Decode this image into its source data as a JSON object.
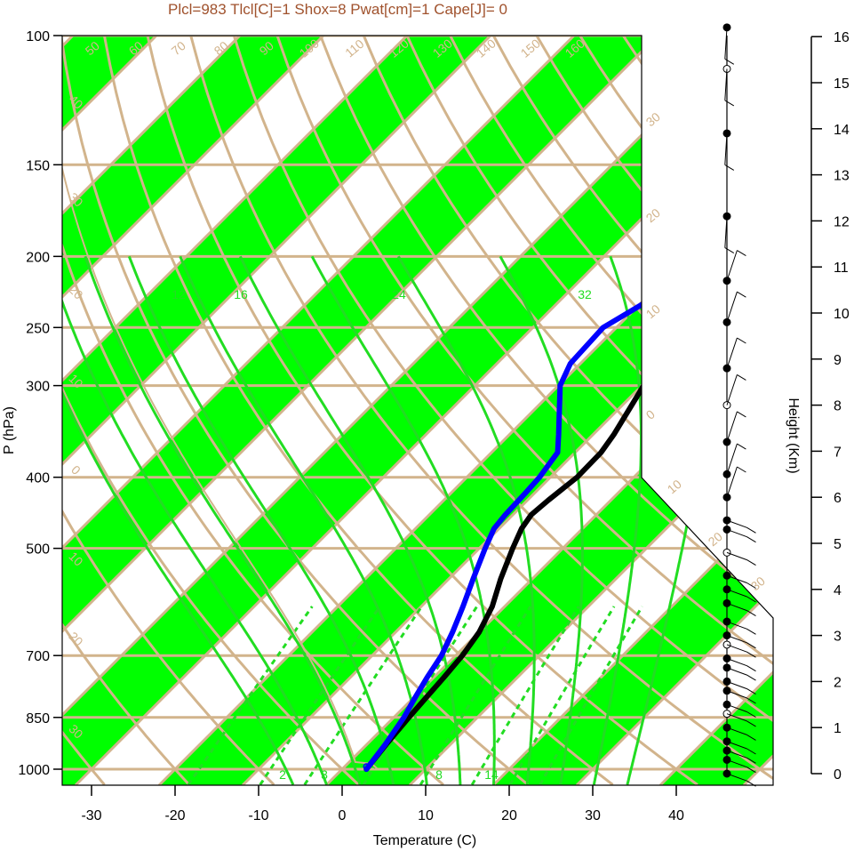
{
  "title": "Plcl=983 Tlcl[C]=1 Shox=8 Pwat[cm]=1 Cape[J]= 0",
  "colors": {
    "band": "#00ff00",
    "isobar": "#d2b48c",
    "isotherm": "#d2b48c",
    "dry_adiabat": "#d2b48c",
    "moist_adiabat": "#22dd22",
    "mixing_ratio": "#22dd22",
    "temperature": "#000000",
    "dewpoint": "#0000ff",
    "title": "#a0522d"
  },
  "chart_data": {
    "type": "line",
    "title": "Plcl=983 Tlcl[C]=1 Shox=8 Pwat[cm]=1 Cape[J]= 0",
    "xlabel": "Temperature (C)",
    "ylabel": "P (hPa)",
    "y2label": "Height (Km)",
    "x_ticks": [
      "-30",
      "-20",
      "-10",
      "0",
      "10",
      "20",
      "30",
      "40"
    ],
    "p_ticks": [
      "100",
      "150",
      "200",
      "250",
      "300",
      "400",
      "500",
      "700",
      "850",
      "1000"
    ],
    "height_ticks": [
      "0",
      "1",
      "2",
      "3",
      "4",
      "5",
      "6",
      "7",
      "8",
      "9",
      "10",
      "11",
      "12",
      "13",
      "14",
      "15",
      "16"
    ],
    "isotherm_labels": [
      "50",
      "60",
      "70",
      "80",
      "90",
      "100",
      "110",
      "120",
      "130",
      "140",
      "150",
      "160",
      "30",
      "20",
      "10",
      "0",
      "10",
      "20",
      "30"
    ],
    "left_labels": [
      "40",
      "30",
      "20",
      "10",
      "0",
      "10",
      "20",
      "30"
    ],
    "mixing_labels_top": [
      "12",
      "16",
      "24",
      "32"
    ],
    "mixing_labels_bottom": [
      "2",
      "3",
      "8",
      "14"
    ],
    "series": [
      {
        "p": [
          1000,
          925,
          850,
          800,
          750,
          700,
          650,
          600,
          550,
          500,
          470,
          450,
          430,
          400,
          370,
          350,
          300,
          270,
          250,
          235,
          220,
          210,
          200,
          180,
          160,
          140,
          120,
          110
        ],
        "values": [
          2.9,
          2.3,
          1.8,
          1.5,
          1.2,
          0.8,
          0.0,
          -1.5,
          -3.8,
          -6.0,
          -7.3,
          -7.8,
          -7.5,
          -6.8,
          -6.9,
          -7.5,
          -9.8,
          -10.2,
          -9.5,
          -7.3,
          -1.7,
          1.5,
          2.8,
          5.0,
          7.4,
          10.3,
          12.4,
          13.2
        ]
      },
      {
        "p": [
          1000,
          925,
          850,
          800,
          750,
          700,
          650,
          600,
          550,
          500,
          470,
          450,
          420,
          400,
          370,
          350,
          300,
          280,
          250,
          230,
          220,
          200,
          150,
          110
        ],
        "values": [
          2.9,
          2.2,
          1.2,
          0.2,
          -0.8,
          -1.7,
          -3.2,
          -5.0,
          -7.1,
          -9.3,
          -10.6,
          -10.9,
          -11.1,
          -11.3,
          -12.1,
          -14.1,
          -19.8,
          -21.2,
          -21.6,
          -19.4,
          -19.8,
          -25.0,
          -27.0,
          -28.2
        ]
      }
    ],
    "wind_profile": {
      "height_km": [
        0,
        0.3,
        0.5,
        0.7,
        1.0,
        1.3,
        1.5,
        1.8,
        2.0,
        2.3,
        2.5,
        2.8,
        3.0,
        3.3,
        3.7,
        4.0,
        4.3,
        4.8,
        5.3,
        5.5,
        6.0,
        6.5,
        7.2,
        8.0,
        8.8,
        9.8,
        10.7,
        12.1,
        13.9,
        15.3,
        16.2
      ],
      "description": "wind barbs along the height axis"
    }
  }
}
